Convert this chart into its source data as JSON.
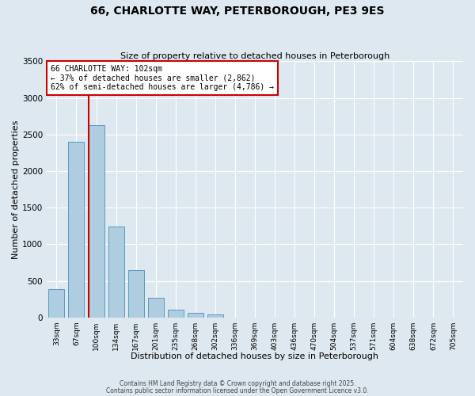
{
  "title": "66, CHARLOTTE WAY, PETERBOROUGH, PE3 9ES",
  "subtitle": "Size of property relative to detached houses in Peterborough",
  "xlabel": "Distribution of detached houses by size in Peterborough",
  "ylabel": "Number of detached properties",
  "bar_labels": [
    "33sqm",
    "67sqm",
    "100sqm",
    "134sqm",
    "167sqm",
    "201sqm",
    "235sqm",
    "268sqm",
    "302sqm",
    "336sqm",
    "369sqm",
    "403sqm",
    "436sqm",
    "470sqm",
    "504sqm",
    "537sqm",
    "571sqm",
    "604sqm",
    "638sqm",
    "672sqm",
    "705sqm"
  ],
  "bar_values": [
    390,
    2400,
    2625,
    1240,
    645,
    270,
    110,
    60,
    40,
    0,
    0,
    0,
    0,
    0,
    0,
    0,
    0,
    0,
    0,
    0,
    0
  ],
  "bar_color": "#aecde0",
  "bar_edge_color": "#5a9abe",
  "ylim": [
    0,
    3500
  ],
  "yticks": [
    0,
    500,
    1000,
    1500,
    2000,
    2500,
    3000,
    3500
  ],
  "vline_color": "#cc0000",
  "annotation_title": "66 CHARLOTTE WAY: 102sqm",
  "annotation_line1": "← 37% of detached houses are smaller (2,862)",
  "annotation_line2": "62% of semi-detached houses are larger (4,786) →",
  "annotation_box_color": "#ffffff",
  "annotation_box_edge": "#cc0000",
  "background_color": "#dde8f0",
  "grid_color": "#ffffff",
  "footer1": "Contains HM Land Registry data © Crown copyright and database right 2025.",
  "footer2": "Contains public sector information licensed under the Open Government Licence v3.0."
}
